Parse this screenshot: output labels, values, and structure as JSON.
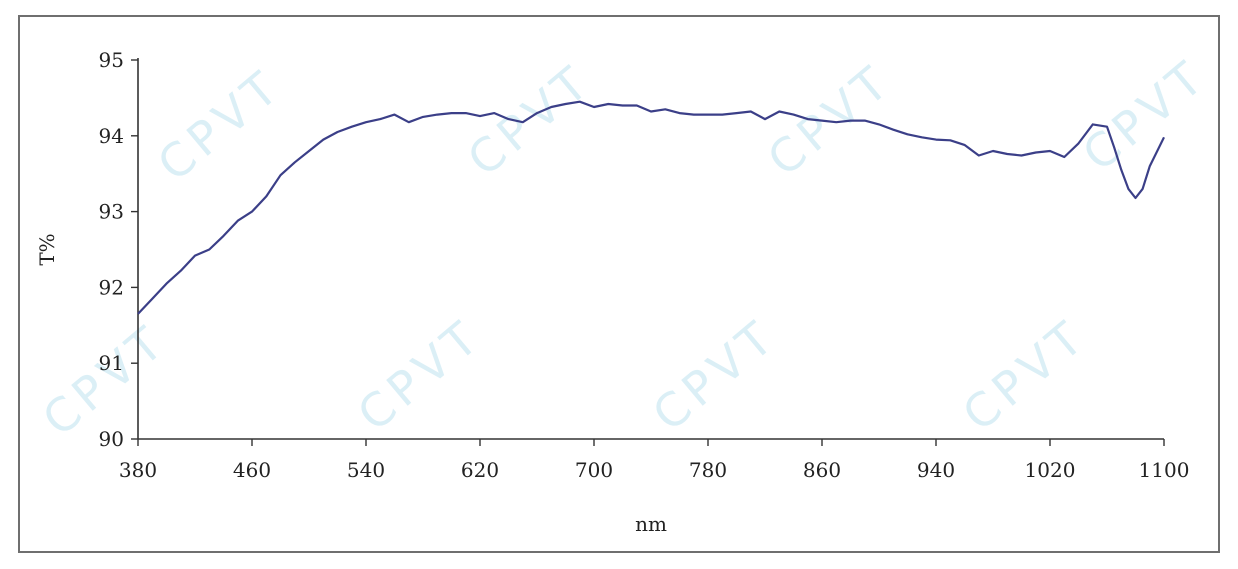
{
  "watermark_text": "CPVT",
  "chart_data": {
    "type": "line",
    "xlabel": "nm",
    "ylabel": "T%",
    "xlim": [
      380,
      1100
    ],
    "ylim": [
      90,
      95
    ],
    "x_ticks": [
      380,
      460,
      540,
      620,
      700,
      780,
      860,
      940,
      1020,
      1100
    ],
    "y_ticks": [
      90,
      91,
      92,
      93,
      94,
      95
    ],
    "grid": false,
    "line_color": "#3b3f88",
    "series": [
      {
        "x": [
          380,
          390,
          400,
          410,
          420,
          430,
          440,
          450,
          460,
          470,
          480,
          490,
          500,
          510,
          520,
          530,
          540,
          550,
          560,
          570,
          580,
          590,
          600,
          610,
          620,
          630,
          640,
          650,
          660,
          670,
          680,
          690,
          700,
          710,
          720,
          730,
          740,
          750,
          760,
          770,
          780,
          790,
          800,
          810,
          820,
          830,
          840,
          850,
          860,
          870,
          880,
          890,
          900,
          910,
          920,
          930,
          940,
          950,
          960,
          970,
          980,
          990,
          1000,
          1010,
          1020,
          1030,
          1040,
          1050,
          1060,
          1065,
          1070,
          1075,
          1080,
          1085,
          1090,
          1100
        ],
        "y": [
          91.65,
          91.85,
          92.05,
          92.22,
          92.42,
          92.5,
          92.68,
          92.88,
          93.0,
          93.2,
          93.48,
          93.65,
          93.8,
          93.95,
          94.05,
          94.12,
          94.18,
          94.22,
          94.28,
          94.18,
          94.25,
          94.28,
          94.3,
          94.3,
          94.26,
          94.3,
          94.22,
          94.18,
          94.3,
          94.38,
          94.42,
          94.45,
          94.38,
          94.42,
          94.4,
          94.4,
          94.32,
          94.35,
          94.3,
          94.28,
          94.28,
          94.28,
          94.3,
          94.32,
          94.22,
          94.32,
          94.28,
          94.22,
          94.2,
          94.18,
          94.2,
          94.2,
          94.15,
          94.08,
          94.02,
          93.98,
          93.95,
          93.94,
          93.88,
          93.74,
          93.8,
          93.76,
          93.74,
          93.78,
          93.8,
          93.72,
          93.9,
          94.15,
          94.12,
          93.85,
          93.55,
          93.3,
          93.18,
          93.3,
          93.6,
          93.98
        ]
      }
    ]
  }
}
